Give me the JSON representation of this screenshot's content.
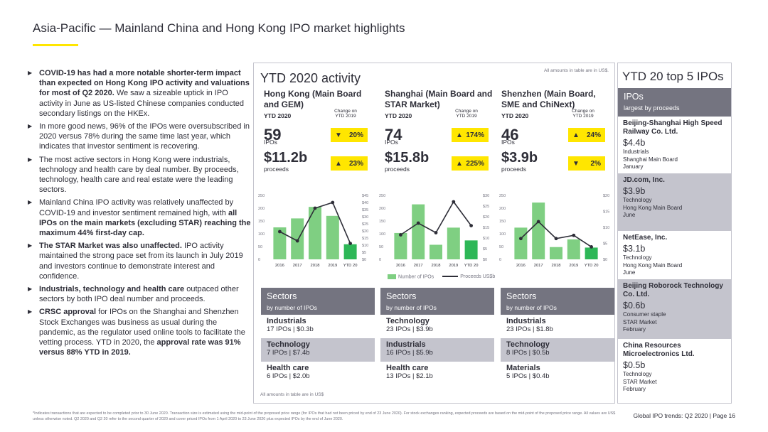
{
  "page_title": "Asia-Pacific — Mainland China and Hong Kong IPO market highlights",
  "bullets": [
    {
      "bold": "COVID-19 has had a more notable shorter-term impact than expected on Hong Kong IPO activity and valuations for most of Q2 2020.",
      "text": " We saw a sizeable uptick in IPO activity in June as US-listed Chinese companies conducted secondary listings on the HKEx."
    },
    {
      "bold": "",
      "text": "In more good news, 96% of the IPOs were oversubscribed in 2020 versus 78% during the same time last year, which indicates that investor sentiment is recovering."
    },
    {
      "bold": "",
      "text": "The most active sectors in Hong Kong were industrials, technology and health care by deal number. By proceeds, technology, health care and real estate were the leading sectors."
    },
    {
      "bold": "",
      "text": "Mainland China IPO activity was relatively unaffected by COVID-19 and investor sentiment remained high, with ",
      "bold2": "all IPOs on the main markets (excluding STAR) reaching the maximum 44% first-day cap."
    },
    {
      "bold": "The STAR Market was also unaffected.",
      "text": " IPO activity maintained the strong pace set from its launch in July 2019 and investors continue to demonstrate interest and confidence."
    },
    {
      "bold": "Industrials, technology and health care",
      "text": " outpaced other sectors by both IPO deal number and proceeds."
    },
    {
      "bold": "CRSC approval",
      "text": " for IPOs on the Shanghai and Shenzhen Stock Exchanges was business as usual during the pandemic, as the regulator used online tools to facilitate the vetting process. YTD in 2020, the ",
      "bold2": "approval rate was 91% versus 88% YTD in 2019."
    }
  ],
  "activity": {
    "title": "YTD 2020 activity",
    "note": "All amounts in table are in US$.",
    "ytd_label": "YTD 2020",
    "change_label": "Change on YTD 2019",
    "ipos_label": "IPOs",
    "proceeds_label": "proceeds",
    "markets": [
      {
        "name": "Hong Kong (Main Board and GEM)",
        "ipos": "59",
        "ipos_change": "20%",
        "ipos_dir": "▼",
        "proceeds": "$11.2b",
        "proceeds_change": "23%",
        "proceeds_dir": "▲"
      },
      {
        "name": "Shanghai (Main Board and STAR Market)",
        "ipos": "74",
        "ipos_change": "174%",
        "ipos_dir": "▲",
        "proceeds": "$15.8b",
        "proceeds_change": "225%",
        "proceeds_dir": "▲"
      },
      {
        "name": "Shenzhen (Main Board, SME and ChiNext)",
        "ipos": "46",
        "ipos_change": "24%",
        "ipos_dir": "▲",
        "proceeds": "$3.9b",
        "proceeds_change": "2%",
        "proceeds_dir": "▼"
      }
    ],
    "legend": {
      "bars": "Number of IPOs",
      "line": "Proceeds US$b"
    },
    "footer": "All amounts in table are in US$"
  },
  "chart_data": [
    {
      "type": "bar",
      "title": "Hong Kong (Main Board and GEM)",
      "categories": [
        "2016",
        "2017",
        "2018",
        "2019",
        "YTD 20"
      ],
      "series": [
        {
          "name": "Number of IPOs",
          "values": [
            125,
            160,
            205,
            170,
            59
          ]
        },
        {
          "name": "Proceeds US$b",
          "values": [
            19.5,
            13,
            36,
            40,
            11.2
          ]
        }
      ],
      "ylim": [
        0,
        250
      ],
      "y2lim": [
        0,
        45
      ],
      "yticks": [
        "250",
        "200",
        "150",
        "100",
        "50",
        "0"
      ],
      "y2ticks": [
        "$45",
        "$40",
        "$35",
        "$30",
        "$25",
        "$20",
        "$15",
        "$10",
        "$5",
        "$0"
      ]
    },
    {
      "type": "bar",
      "title": "Shanghai (Main Board and STAR Market)",
      "categories": [
        "2016",
        "2017",
        "2018",
        "2019",
        "YTD 20"
      ],
      "series": [
        {
          "name": "Number of IPOs",
          "values": [
            103,
            215,
            57,
            124,
            74
          ]
        },
        {
          "name": "Proceeds US$b",
          "values": [
            11.5,
            17,
            12.5,
            27,
            15.8
          ]
        }
      ],
      "ylim": [
        0,
        250
      ],
      "y2lim": [
        0,
        30
      ],
      "yticks": [
        "250",
        "200",
        "150",
        "100",
        "50",
        "0"
      ],
      "y2ticks": [
        "$30",
        "$25",
        "$20",
        "$15",
        "$10",
        "$5",
        "$0"
      ]
    },
    {
      "type": "bar",
      "title": "Shenzhen (Main Board, SME and ChiNext)",
      "categories": [
        "2016",
        "2017",
        "2018",
        "2019",
        "YTD 20"
      ],
      "series": [
        {
          "name": "Number of IPOs",
          "values": [
            124,
            222,
            48,
            78,
            46
          ]
        },
        {
          "name": "Proceeds US$b",
          "values": [
            6.5,
            11.8,
            6.5,
            7.5,
            3.9
          ]
        }
      ],
      "ylim": [
        0,
        250
      ],
      "y2lim": [
        0,
        20
      ],
      "yticks": [
        "250",
        "200",
        "150",
        "100",
        "50",
        "0"
      ],
      "y2ticks": [
        "$20",
        "$15",
        "$10",
        "$5",
        "$0"
      ]
    }
  ],
  "sectors": {
    "title": "Sectors",
    "subtitle": "by number of IPOs",
    "columns": [
      [
        {
          "name": "Industrials",
          "value": "17 IPOs | $0.3b"
        },
        {
          "name": "Technology",
          "value": "7 IPOs | $7.4b"
        },
        {
          "name": "Health care",
          "value": "6 IPOs | $2.0b"
        }
      ],
      [
        {
          "name": "Technology",
          "value": "23 IPOs | $3.9b"
        },
        {
          "name": "Industrials",
          "value": "16 IPOs |  $5.9b"
        },
        {
          "name": "Health care",
          "value": "13 IPOs |  $2.1b"
        }
      ],
      [
        {
          "name": "Industrials",
          "value": "23 IPOs | $1.8b"
        },
        {
          "name": "Technology",
          "value": "8 IPOs | $0.5b"
        },
        {
          "name": "Materials",
          "value": "5 IPOs | $0.4b"
        }
      ]
    ]
  },
  "top5": {
    "title": "YTD 20 top 5 IPOs",
    "head": "IPOs",
    "subhead": "largest by proceeds",
    "items": [
      {
        "name": "Beijing-Shanghai High Speed Railway Co. Ltd.",
        "amount": "$4.4b",
        "sector": "Industrials",
        "market": "Shanghai Main Board",
        "month": "January"
      },
      {
        "name": "JD.com, Inc.",
        "amount": "$3.9b",
        "sector": "Technology",
        "market": "Hong Kong Main Board",
        "month": "June"
      },
      {
        "name": "NetEase, Inc.",
        "amount": "$3.1b",
        "sector": "Technology",
        "market": "Hong Kong Main Board",
        "month": "June"
      },
      {
        "name": "Beijing Roborock Technology Co. Ltd.",
        "amount": "$0.6b",
        "sector": "Consumer staple",
        "market": "STAR Market",
        "month": "February"
      },
      {
        "name": "China Resources Microelectronics Ltd.",
        "amount": "$0.5b",
        "sector": "Technology",
        "market": "STAR Market",
        "month": "February"
      }
    ]
  },
  "footnote": "*Indicates transactions that are expected to be completed prior to 30 June  2020. Transaction size is estimated using the mid-point of the proposed price range (for IPOs that had not been priced by end of 23 June 2020). For stock exchanges ranking, expected proceeds are based on the mid-point of the proposed price range. All values are US$ unless otherwise noted. Q2 2020 and Q2 20 refer to the second quarter of 2020 and cover priced IPOs from 1 April 2020 to 23 June 2020 plus expected IPOs by the end of June 2020.",
  "page_footer": "Global IPO trends: Q2 2020  |  Page 16",
  "colors": {
    "bar": "#7fcf82",
    "bar_highlight": "#2db757",
    "line": "#2e2e38",
    "accent": "#ffe600",
    "grey": "#747480",
    "light_grey": "#c4c4cd"
  }
}
